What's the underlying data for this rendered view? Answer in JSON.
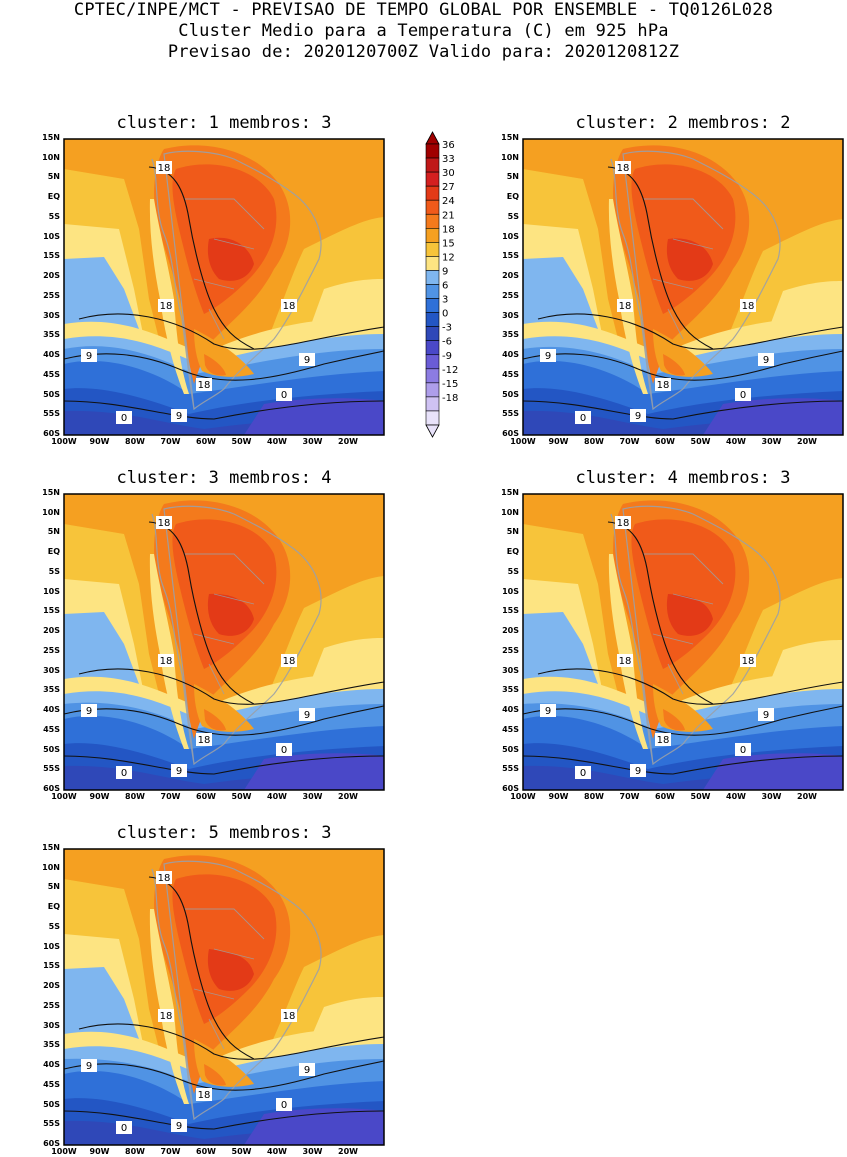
{
  "header": {
    "line1": "CPTEC/INPE/MCT - PREVISAO DE TEMPO GLOBAL POR ENSEMBLE - TQ0126L028",
    "line2": "Cluster Medio para a Temperatura (C) em 925 hPa",
    "line3": "Previsao de: 2020120700Z   Valido para: 2020120812Z"
  },
  "panels": [
    {
      "title": "cluster: 1  membros: 3"
    },
    {
      "title": "cluster: 2  membros: 2"
    },
    {
      "title": "cluster: 3  membros: 4"
    },
    {
      "title": "cluster: 4  membros: 3"
    },
    {
      "title": "cluster: 5  membros: 3"
    }
  ],
  "axes": {
    "lat_labels": [
      "15N",
      "10N",
      "5N",
      "EQ",
      "5S",
      "10S",
      "15S",
      "20S",
      "25S",
      "30S",
      "35S",
      "40S",
      "45S",
      "50S",
      "55S",
      "60S"
    ],
    "lon_labels": [
      "100W",
      "90W",
      "80W",
      "70W",
      "60W",
      "50W",
      "40W",
      "30W",
      "20W"
    ]
  },
  "colorbar": {
    "levels": [
      "36",
      "33",
      "30",
      "27",
      "24",
      "21",
      "18",
      "15",
      "12",
      "9",
      "6",
      "3",
      "0",
      "-3",
      "-6",
      "-9",
      "-12",
      "-15",
      "-18"
    ],
    "colors": [
      "#a00000",
      "#c01818",
      "#d42020",
      "#e33a17",
      "#f05a1a",
      "#f47a1c",
      "#f5a021",
      "#f7c43a",
      "#fde482",
      "#7fb6ef",
      "#5093e4",
      "#2f70d8",
      "#2356c4",
      "#2f48b8",
      "#4a48c8",
      "#6a5cd6",
      "#8c7ce2",
      "#ae9eea",
      "#cfc2f3",
      "#e8e2fa"
    ]
  },
  "contour_labels": {
    "c18": "18",
    "c9": "9",
    "c0": "0"
  }
}
